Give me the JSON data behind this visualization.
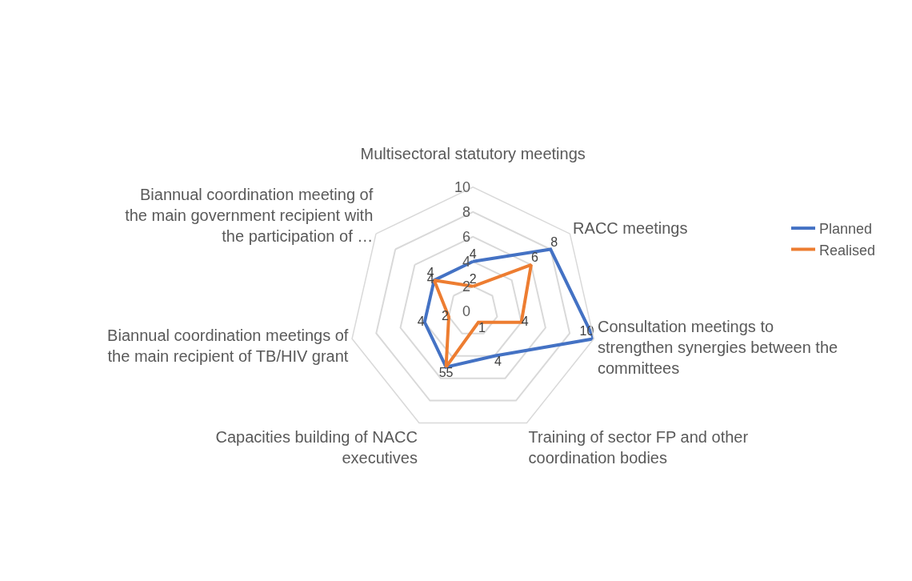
{
  "chart_data": {
    "type": "radar",
    "categories": [
      "Multisectoral statutory meetings",
      "RACC meetings",
      "Consultation meetings to strengthen synergies between the committees",
      "Training of sector FP and other coordination bodies",
      "Capacities building of NACC executives",
      "Biannual coordination meetings of the main recipient of TB/HIV grant",
      "Biannual coordination meeting of the main government recipient with the participation of …"
    ],
    "series": [
      {
        "name": "Planned",
        "color": "#4472c4",
        "values": [
          4,
          8,
          10,
          4,
          5,
          4,
          4
        ]
      },
      {
        "name": "Realised",
        "color": "#ed7d31",
        "values": [
          2,
          6,
          4,
          1,
          5,
          2,
          4
        ]
      }
    ],
    "ylim": [
      0,
      10
    ],
    "yticks": [
      0,
      2,
      4,
      6,
      8,
      10
    ],
    "grid": true,
    "legend": "right",
    "data_labels": true,
    "marker": "none",
    "line_style": "solid"
  }
}
